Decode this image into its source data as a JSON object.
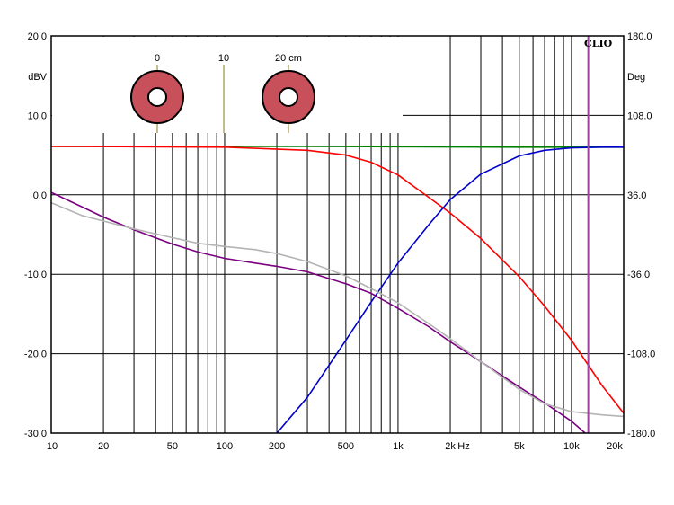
{
  "chart_data": {
    "type": "line",
    "x_scale": "log",
    "xlim": [
      10,
      20000
    ],
    "left_axis": {
      "unit": "dBV",
      "ylim": [
        -30,
        20
      ],
      "ticks": [
        20,
        10,
        0,
        -10,
        -20,
        -30
      ],
      "tick_labels": [
        "20.0",
        "10.0",
        "0.0",
        "-10.0",
        "-20.0",
        "-30.0"
      ]
    },
    "right_axis": {
      "unit": "Deg",
      "ylim": [
        -180,
        180
      ],
      "ticks": [
        180,
        108,
        36,
        -36,
        -108,
        -180
      ],
      "tick_labels": [
        "180.0",
        "108.0",
        "36.0",
        "-36.0",
        "-108.0",
        "-180.0"
      ]
    },
    "x_tick_values": [
      10,
      20,
      50,
      100,
      200,
      500,
      1000,
      2000,
      5000,
      10000,
      20000
    ],
    "x_tick_labels": [
      "10",
      "20",
      "50",
      "100",
      "200",
      "500",
      "1k",
      "2k",
      "5k",
      "10k",
      "20k"
    ],
    "x_unit_label": "Hz",
    "logo_text": "CLIO",
    "grid": true,
    "marker": {
      "x": 12500,
      "color": "#a040a0"
    },
    "inset": {
      "scale_labels": [
        "0",
        "10",
        "20 cm"
      ],
      "ring_color": "#c8505a"
    },
    "series": [
      {
        "color": "#008000",
        "x": [
          10,
          100,
          300,
          1000,
          5000,
          20000
        ],
        "y": [
          6.1,
          6.1,
          6.1,
          6.05,
          6.0,
          6.0
        ]
      },
      {
        "color": "#ff0000",
        "x": [
          10,
          100,
          300,
          500,
          700,
          1000,
          1500,
          2000,
          3000,
          5000,
          7000,
          10000,
          15000,
          20000
        ],
        "y": [
          6.1,
          6.0,
          5.6,
          5.0,
          4.1,
          2.5,
          -0.3,
          -2.3,
          -5.5,
          -10.3,
          -14.0,
          -18.3,
          -24.0,
          -27.5
        ]
      },
      {
        "color": "#0000cc",
        "x": [
          200,
          300,
          500,
          700,
          1000,
          1500,
          2000,
          3000,
          5000,
          7000,
          10000,
          15000,
          20000
        ],
        "y": [
          -30.0,
          -25.5,
          -18.3,
          -13.5,
          -8.6,
          -3.8,
          -0.6,
          2.6,
          4.9,
          5.6,
          5.9,
          6.0,
          6.0
        ]
      },
      {
        "color": "#7a0080",
        "x": [
          10,
          15,
          20,
          30,
          50,
          70,
          100,
          150,
          200,
          300,
          500,
          700,
          1000,
          1500,
          2000,
          3000,
          5000,
          7000,
          10000,
          12000
        ],
        "y": [
          0.3,
          -1.5,
          -2.8,
          -4.4,
          -6.2,
          -7.2,
          -8.0,
          -8.6,
          -9.0,
          -9.7,
          -11.2,
          -12.4,
          -14.3,
          -16.6,
          -18.5,
          -21.0,
          -24.2,
          -26.2,
          -28.5,
          -30.0
        ]
      },
      {
        "color": "#b4b4b4",
        "x": [
          10,
          15,
          20,
          30,
          50,
          70,
          100,
          150,
          200,
          300,
          500,
          700,
          1000,
          1500,
          2000,
          3000,
          5000,
          7000,
          10000,
          15000,
          20000
        ],
        "y": [
          -1.0,
          -2.6,
          -3.3,
          -4.3,
          -5.4,
          -6.1,
          -6.5,
          -6.9,
          -7.4,
          -8.4,
          -10.2,
          -11.8,
          -13.6,
          -16.2,
          -18.1,
          -21.0,
          -24.5,
          -26.3,
          -27.3,
          -27.7,
          -27.9
        ]
      }
    ]
  }
}
